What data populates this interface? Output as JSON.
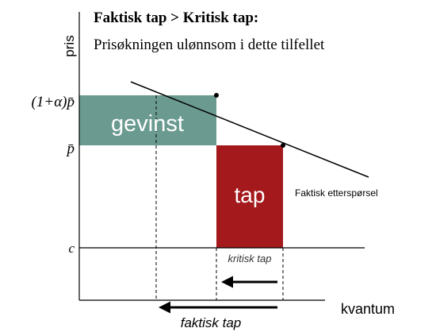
{
  "title": "Faktisk tap > Kritisk tap:",
  "subtitle": "Prisøkningen ulønnsom i dette tilfellet",
  "axes": {
    "y_label": "pris",
    "x_label": "kvantum"
  },
  "price_labels": {
    "high": "(1+α)p̄",
    "base": "p̄",
    "cost": "c"
  },
  "areas": {
    "gain": "gevinst",
    "loss": "tap"
  },
  "demand_label": "Faktisk etterspørsel",
  "arrows": {
    "critical": "kritisk tap",
    "actual": "faktisk tap"
  }
}
